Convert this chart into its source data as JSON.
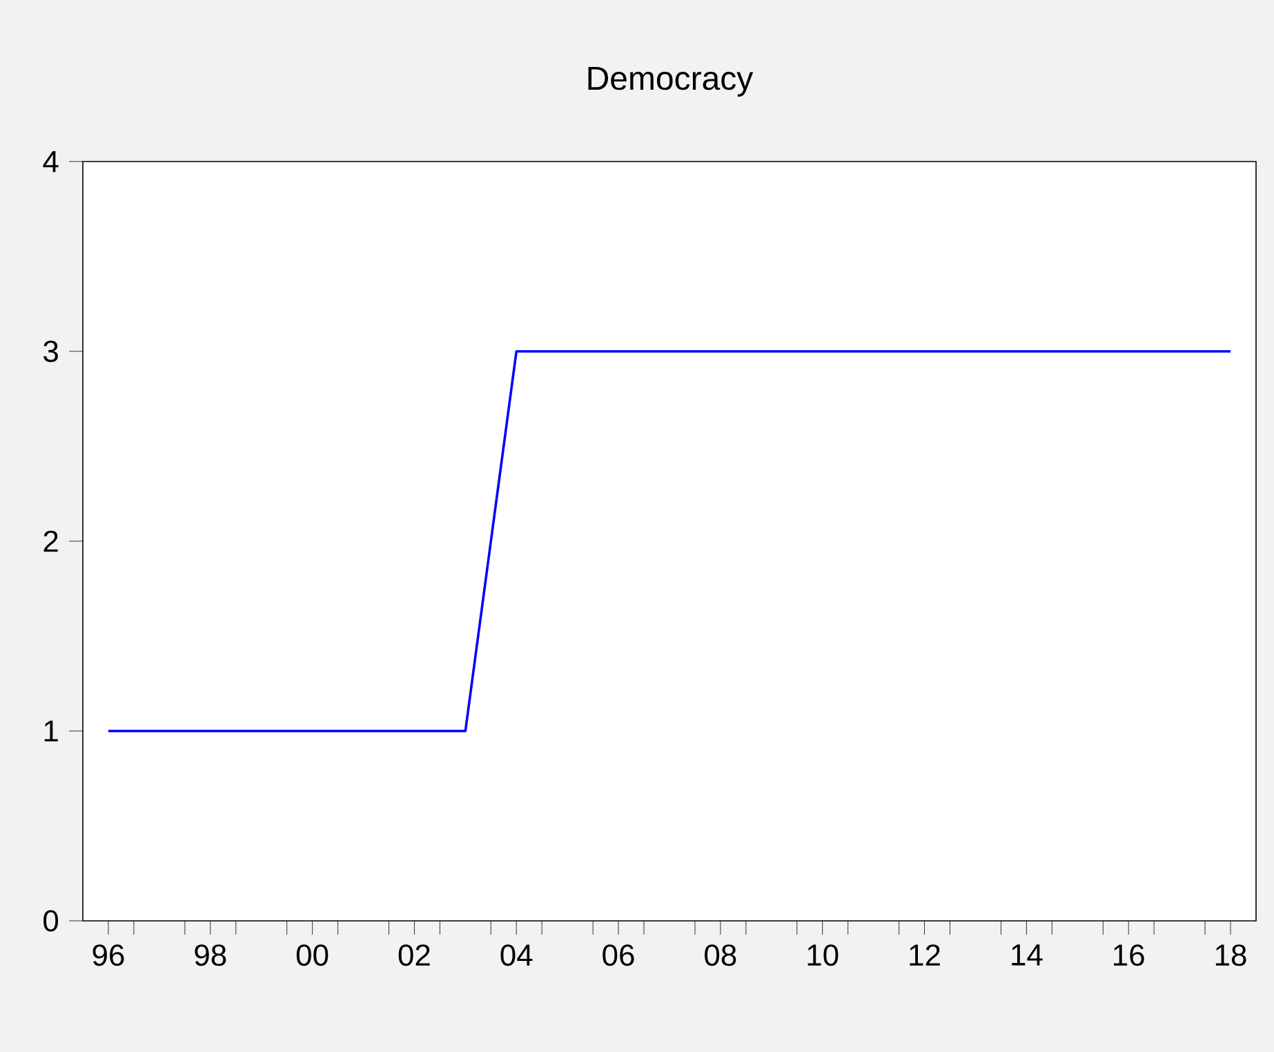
{
  "chart_data": {
    "type": "line",
    "title": "Democracy",
    "categories": [
      "96",
      null,
      "98",
      null,
      "00",
      null,
      "02",
      null,
      "04",
      null,
      "06",
      null,
      "08",
      null,
      "10",
      null,
      "12",
      null,
      "14",
      null,
      "16",
      null,
      "18"
    ],
    "series": [
      {
        "color": "#0000ff",
        "values": [
          1,
          1,
          1,
          1,
          1,
          1,
          1,
          1,
          3,
          3,
          3,
          3,
          3,
          3,
          3,
          3,
          3,
          3,
          3,
          3,
          3,
          3,
          3
        ]
      }
    ],
    "ylim": [
      0,
      4
    ],
    "yticks": [
      0,
      1,
      2,
      3,
      4
    ]
  }
}
